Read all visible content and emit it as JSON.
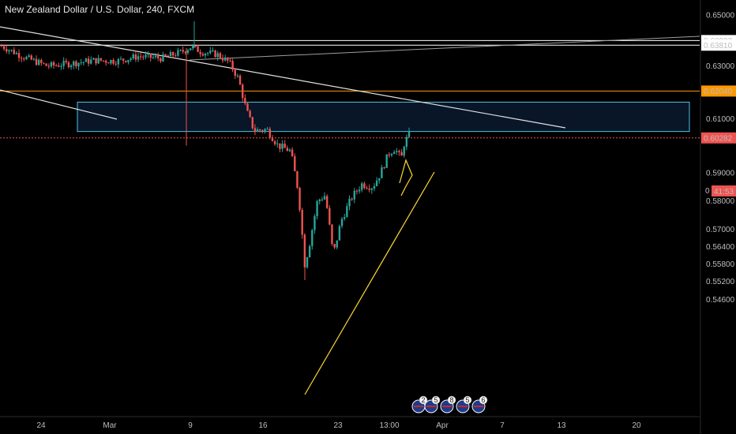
{
  "chart_data": {
    "type": "candlestick",
    "title": "New Zealand Dollar / U.S. Dollar, 240, FXCM",
    "x_ticks": [
      "24",
      "Mar",
      "9",
      "16",
      "23",
      "13:00",
      "Apr",
      "7",
      "13",
      "20"
    ],
    "y_ticks": [
      "0.65000",
      "0.64000",
      "0.63000",
      "0.61000",
      "0.59000",
      "0.58000",
      "0.57000",
      "0.56400",
      "0.55800",
      "0.55200",
      "0.54600"
    ],
    "y_scale": "log",
    "ylim": [
      0.541,
      0.655
    ],
    "price_labels": [
      {
        "text": "0.63993",
        "value": 0.63993,
        "color": "#ffffff",
        "text_color": "#000000"
      },
      {
        "text": "0.63810",
        "value": 0.6381,
        "color": "#ffffff",
        "text_color": "#000000"
      },
      {
        "text": "0.62040",
        "value": 0.6204,
        "color": "#ff9800",
        "text_color": "#000000"
      },
      {
        "text": "0.60282",
        "value": 0.60282,
        "color": "#ef5350",
        "text_color": "#ffffff"
      }
    ],
    "countdown": {
      "text": "41:53",
      "color": "#ef5350"
    },
    "partial_tick": "0",
    "zone": {
      "top": 0.6162,
      "bottom": 0.6052,
      "x_start": 98,
      "x_end": 873,
      "fill": "#081628",
      "stroke": "#4fc3e8"
    },
    "hlines": [
      {
        "value": 0.63993,
        "color": "#ffffff",
        "style": "solid"
      },
      {
        "value": 0.6381,
        "color": "#ffffff",
        "style": "solid"
      },
      {
        "value": 0.6204,
        "color": "#ff9800",
        "style": "solid"
      },
      {
        "value": 0.60282,
        "color": "#ef5350",
        "style": "dotted"
      }
    ],
    "event_badges": [
      "2",
      "5",
      "8",
      "5",
      "6"
    ],
    "colors": {
      "up": "#26a69a",
      "down": "#ef5350",
      "background": "#000000",
      "axis_text": "#bdbdbd"
    },
    "candle_count": 165,
    "candle_seed": 7
  }
}
